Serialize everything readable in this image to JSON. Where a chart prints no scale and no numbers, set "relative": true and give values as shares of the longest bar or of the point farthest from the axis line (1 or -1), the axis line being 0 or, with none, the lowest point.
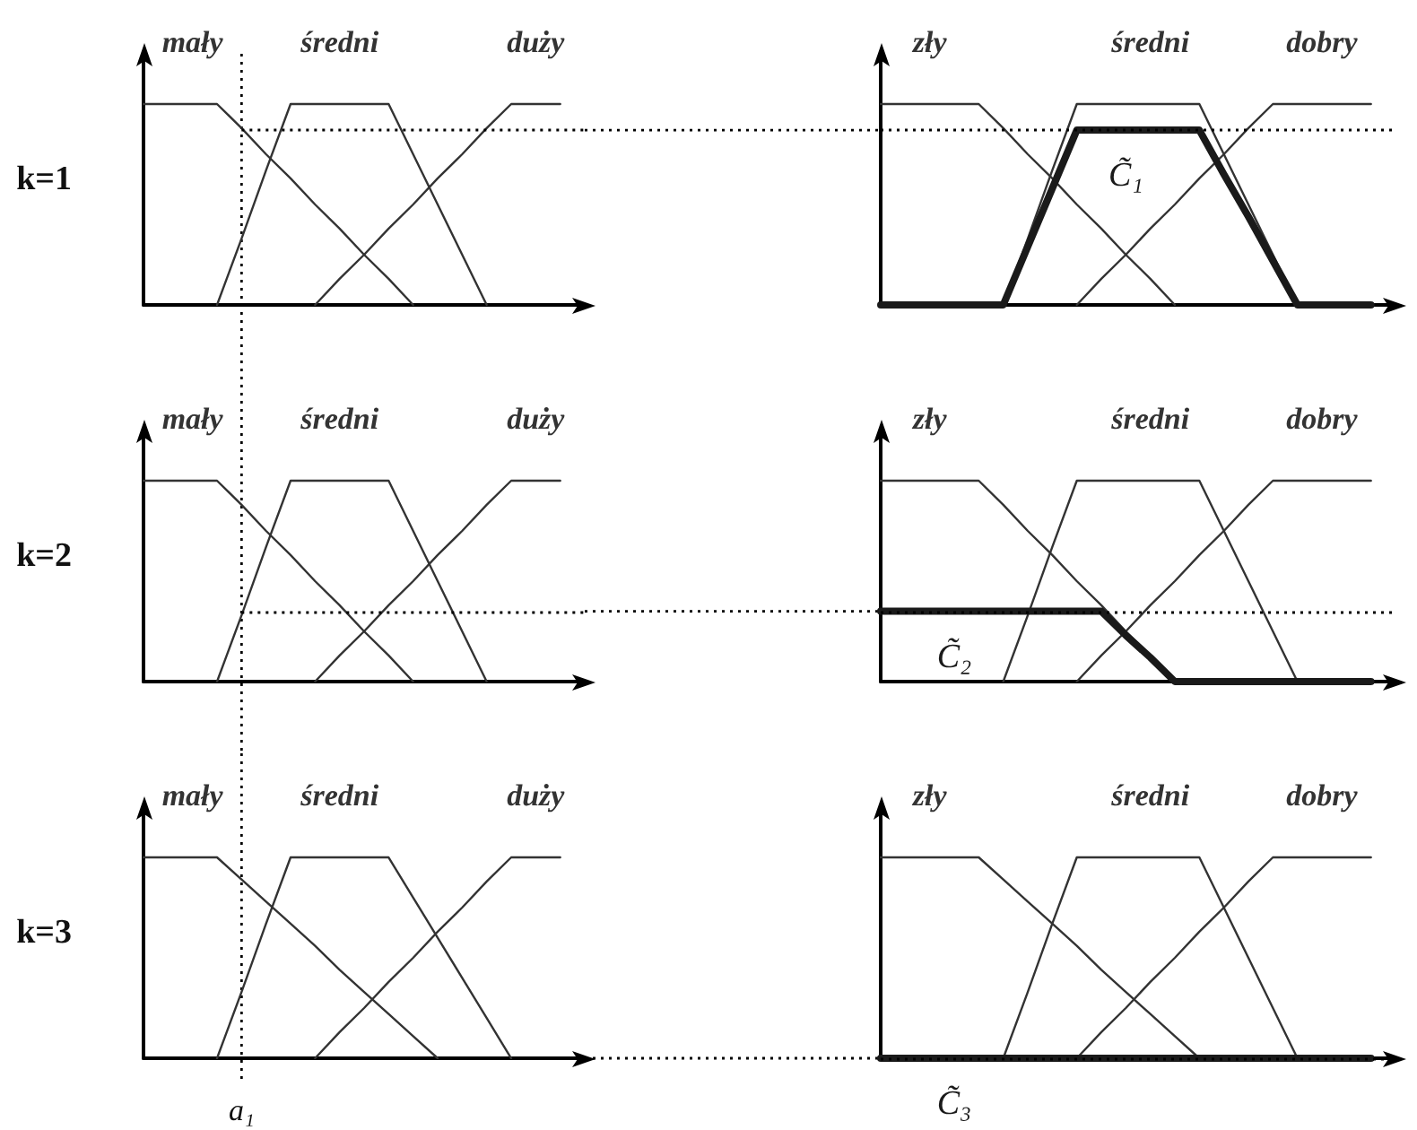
{
  "chart_data": [
    {
      "type": "line",
      "relative": true,
      "ylabel": "k=1",
      "categories": [
        null,
        null,
        null,
        null,
        null,
        null,
        null,
        null,
        null,
        null,
        null,
        null,
        null,
        null,
        null,
        null,
        null,
        null,
        null
      ],
      "series": [
        {
          "name": "mały",
          "color": "#333333",
          "values": [
            1,
            1,
            1,
            1,
            0.88,
            0.75,
            0.63,
            0.5,
            0.38,
            0.25,
            0.13,
            0,
            null,
            null,
            null,
            null,
            null,
            null,
            null
          ]
        },
        {
          "name": "średni",
          "color": "#333333",
          "values": [
            null,
            null,
            null,
            0,
            0.33,
            0.67,
            1,
            1,
            1,
            1,
            1,
            0.75,
            0.5,
            0.25,
            0,
            null,
            null,
            null,
            null
          ]
        },
        {
          "name": "duży",
          "color": "#333333",
          "values": [
            null,
            null,
            null,
            null,
            null,
            null,
            null,
            0,
            0.13,
            0.25,
            0.38,
            0.5,
            0.63,
            0.75,
            0.88,
            1,
            1,
            1,
            null
          ]
        }
      ],
      "ref_lines": [
        {
          "axis": "y",
          "value": 0.87,
          "line_style": "dotted",
          "color": "#000000"
        }
      ]
    },
    {
      "type": "line",
      "relative": true,
      "categories": [
        null,
        null,
        null,
        null,
        null,
        null,
        null,
        null,
        null,
        null,
        null,
        null,
        null,
        null,
        null,
        null,
        null,
        null,
        null,
        null,
        null,
        null
      ],
      "series": [
        {
          "name": "zły",
          "color": "#333333",
          "values": [
            1,
            1,
            1,
            1,
            1,
            0.88,
            0.75,
            0.63,
            0.5,
            0.38,
            0.25,
            0.13,
            0,
            null,
            null,
            null,
            null,
            null,
            null,
            null,
            null,
            null
          ]
        },
        {
          "name": "średni",
          "color": "#333333",
          "values": [
            null,
            null,
            null,
            null,
            null,
            0,
            0.33,
            0.67,
            1,
            1,
            1,
            1,
            1,
            1,
            0.75,
            0.5,
            0.25,
            0,
            null,
            null,
            null,
            null
          ]
        },
        {
          "name": "dobry",
          "color": "#333333",
          "values": [
            null,
            null,
            null,
            null,
            null,
            null,
            null,
            null,
            0,
            0.13,
            0.25,
            0.38,
            0.5,
            0.63,
            0.75,
            0.88,
            1,
            1,
            1,
            1,
            1,
            null
          ]
        },
        {
          "name": "C̃₁",
          "color": "#1a1a1a",
          "values": [
            0,
            0,
            0,
            0,
            0,
            0,
            0.29,
            0.58,
            0.87,
            0.87,
            0.87,
            0.87,
            0.87,
            0.87,
            0.65,
            0.44,
            0.22,
            0,
            0,
            0,
            0,
            null
          ]
        }
      ],
      "ref_lines": [
        {
          "axis": "y",
          "value": 0.87,
          "line_style": "dotted",
          "color": "#000000"
        }
      ]
    },
    {
      "type": "line",
      "relative": true,
      "ylabel": "k=2",
      "categories": [
        null,
        null,
        null,
        null,
        null,
        null,
        null,
        null,
        null,
        null,
        null,
        null,
        null,
        null,
        null,
        null,
        null,
        null,
        null
      ],
      "series": [
        {
          "name": "mały",
          "color": "#333333",
          "values": [
            1,
            1,
            1,
            1,
            0.88,
            0.75,
            0.63,
            0.5,
            0.38,
            0.25,
            0.13,
            0,
            null,
            null,
            null,
            null,
            null,
            null,
            null
          ]
        },
        {
          "name": "średni",
          "color": "#333333",
          "values": [
            null,
            null,
            null,
            0,
            0.33,
            0.67,
            1,
            1,
            1,
            1,
            1,
            0.75,
            0.5,
            0.25,
            0,
            null,
            null,
            null,
            null
          ]
        },
        {
          "name": "duży",
          "color": "#333333",
          "values": [
            null,
            null,
            null,
            null,
            null,
            null,
            null,
            0,
            0.13,
            0.25,
            0.38,
            0.5,
            0.63,
            0.75,
            0.88,
            1,
            1,
            1,
            null
          ]
        }
      ],
      "ref_lines": [
        {
          "axis": "y",
          "value": 0.35,
          "line_style": "dotted",
          "color": "#000000"
        }
      ]
    },
    {
      "type": "line",
      "relative": true,
      "categories": [
        null,
        null,
        null,
        null,
        null,
        null,
        null,
        null,
        null,
        null,
        null,
        null,
        null,
        null,
        null,
        null,
        null,
        null,
        null,
        null,
        null,
        null
      ],
      "series": [
        {
          "name": "zły",
          "color": "#333333",
          "values": [
            1,
            1,
            1,
            1,
            1,
            0.88,
            0.75,
            0.63,
            0.5,
            0.38,
            0.25,
            0.13,
            0,
            null,
            null,
            null,
            null,
            null,
            null,
            null,
            null,
            null
          ]
        },
        {
          "name": "średni",
          "color": "#333333",
          "values": [
            null,
            null,
            null,
            null,
            null,
            0,
            0.33,
            0.67,
            1,
            1,
            1,
            1,
            1,
            1,
            0.75,
            0.5,
            0.25,
            0,
            null,
            null,
            null,
            null
          ]
        },
        {
          "name": "dobry",
          "color": "#333333",
          "values": [
            null,
            null,
            null,
            null,
            null,
            null,
            null,
            null,
            0,
            0.13,
            0.25,
            0.38,
            0.5,
            0.63,
            0.75,
            0.88,
            1,
            1,
            1,
            1,
            1,
            null
          ]
        },
        {
          "name": "C̃₂",
          "color": "#1a1a1a",
          "values": [
            0.35,
            0.35,
            0.35,
            0.35,
            0.35,
            0.35,
            0.35,
            0.35,
            0.35,
            0.35,
            0.23,
            0.12,
            0,
            0,
            0,
            0,
            0,
            0,
            0,
            0,
            0,
            null
          ]
        }
      ],
      "ref_lines": [
        {
          "axis": "y",
          "value": 0.35,
          "line_style": "dotted",
          "color": "#000000"
        }
      ]
    },
    {
      "type": "line",
      "relative": true,
      "ylabel": "k=3",
      "categories": [
        null,
        null,
        null,
        null,
        null,
        null,
        null,
        null,
        null,
        null,
        null,
        null,
        null,
        null,
        null,
        null,
        null,
        null,
        null
      ],
      "series": [
        {
          "name": "mały",
          "color": "#333333",
          "values": [
            1,
            1,
            1,
            1,
            0.89,
            0.78,
            0.67,
            0.56,
            0.44,
            0.33,
            0.22,
            0.11,
            0,
            null,
            null,
            null,
            null,
            null,
            null
          ]
        },
        {
          "name": "średni",
          "color": "#333333",
          "values": [
            null,
            null,
            null,
            0,
            0.33,
            0.67,
            1,
            1,
            1,
            1,
            1,
            0.8,
            0.6,
            0.4,
            0.2,
            0,
            null,
            null,
            null
          ]
        },
        {
          "name": "duży",
          "color": "#333333",
          "values": [
            null,
            null,
            null,
            null,
            null,
            null,
            null,
            0,
            0.13,
            0.25,
            0.38,
            0.5,
            0.63,
            0.75,
            0.88,
            1,
            1,
            1,
            null
          ]
        }
      ],
      "annotations": [
        "a₁"
      ]
    },
    {
      "type": "line",
      "relative": true,
      "categories": [
        null,
        null,
        null,
        null,
        null,
        null,
        null,
        null,
        null,
        null,
        null,
        null,
        null,
        null,
        null,
        null,
        null,
        null,
        null,
        null,
        null,
        null
      ],
      "series": [
        {
          "name": "zły",
          "color": "#333333",
          "values": [
            1,
            1,
            1,
            1,
            1,
            0.89,
            0.78,
            0.67,
            0.56,
            0.44,
            0.33,
            0.22,
            0.11,
            0,
            null,
            null,
            null,
            null,
            null,
            null,
            null,
            null
          ]
        },
        {
          "name": "średni",
          "color": "#333333",
          "values": [
            null,
            null,
            null,
            null,
            null,
            0,
            0.33,
            0.67,
            1,
            1,
            1,
            1,
            1,
            1,
            0.75,
            0.5,
            0.25,
            0,
            null,
            null,
            null,
            null
          ]
        },
        {
          "name": "dobry",
          "color": "#333333",
          "values": [
            null,
            null,
            null,
            null,
            null,
            null,
            null,
            null,
            0,
            0.13,
            0.25,
            0.38,
            0.5,
            0.63,
            0.75,
            0.88,
            1,
            1,
            1,
            1,
            1,
            null
          ]
        },
        {
          "name": "C̃₃",
          "color": "#1a1a1a",
          "values": [
            0,
            0,
            0,
            0,
            0,
            0,
            0,
            0,
            0,
            0,
            0,
            0,
            0,
            0,
            0,
            0,
            0,
            0,
            0,
            0,
            0,
            null
          ]
        }
      ],
      "ref_lines": [
        {
          "axis": "y",
          "value": 0,
          "line_style": "dotted",
          "color": "#000000"
        }
      ]
    }
  ]
}
